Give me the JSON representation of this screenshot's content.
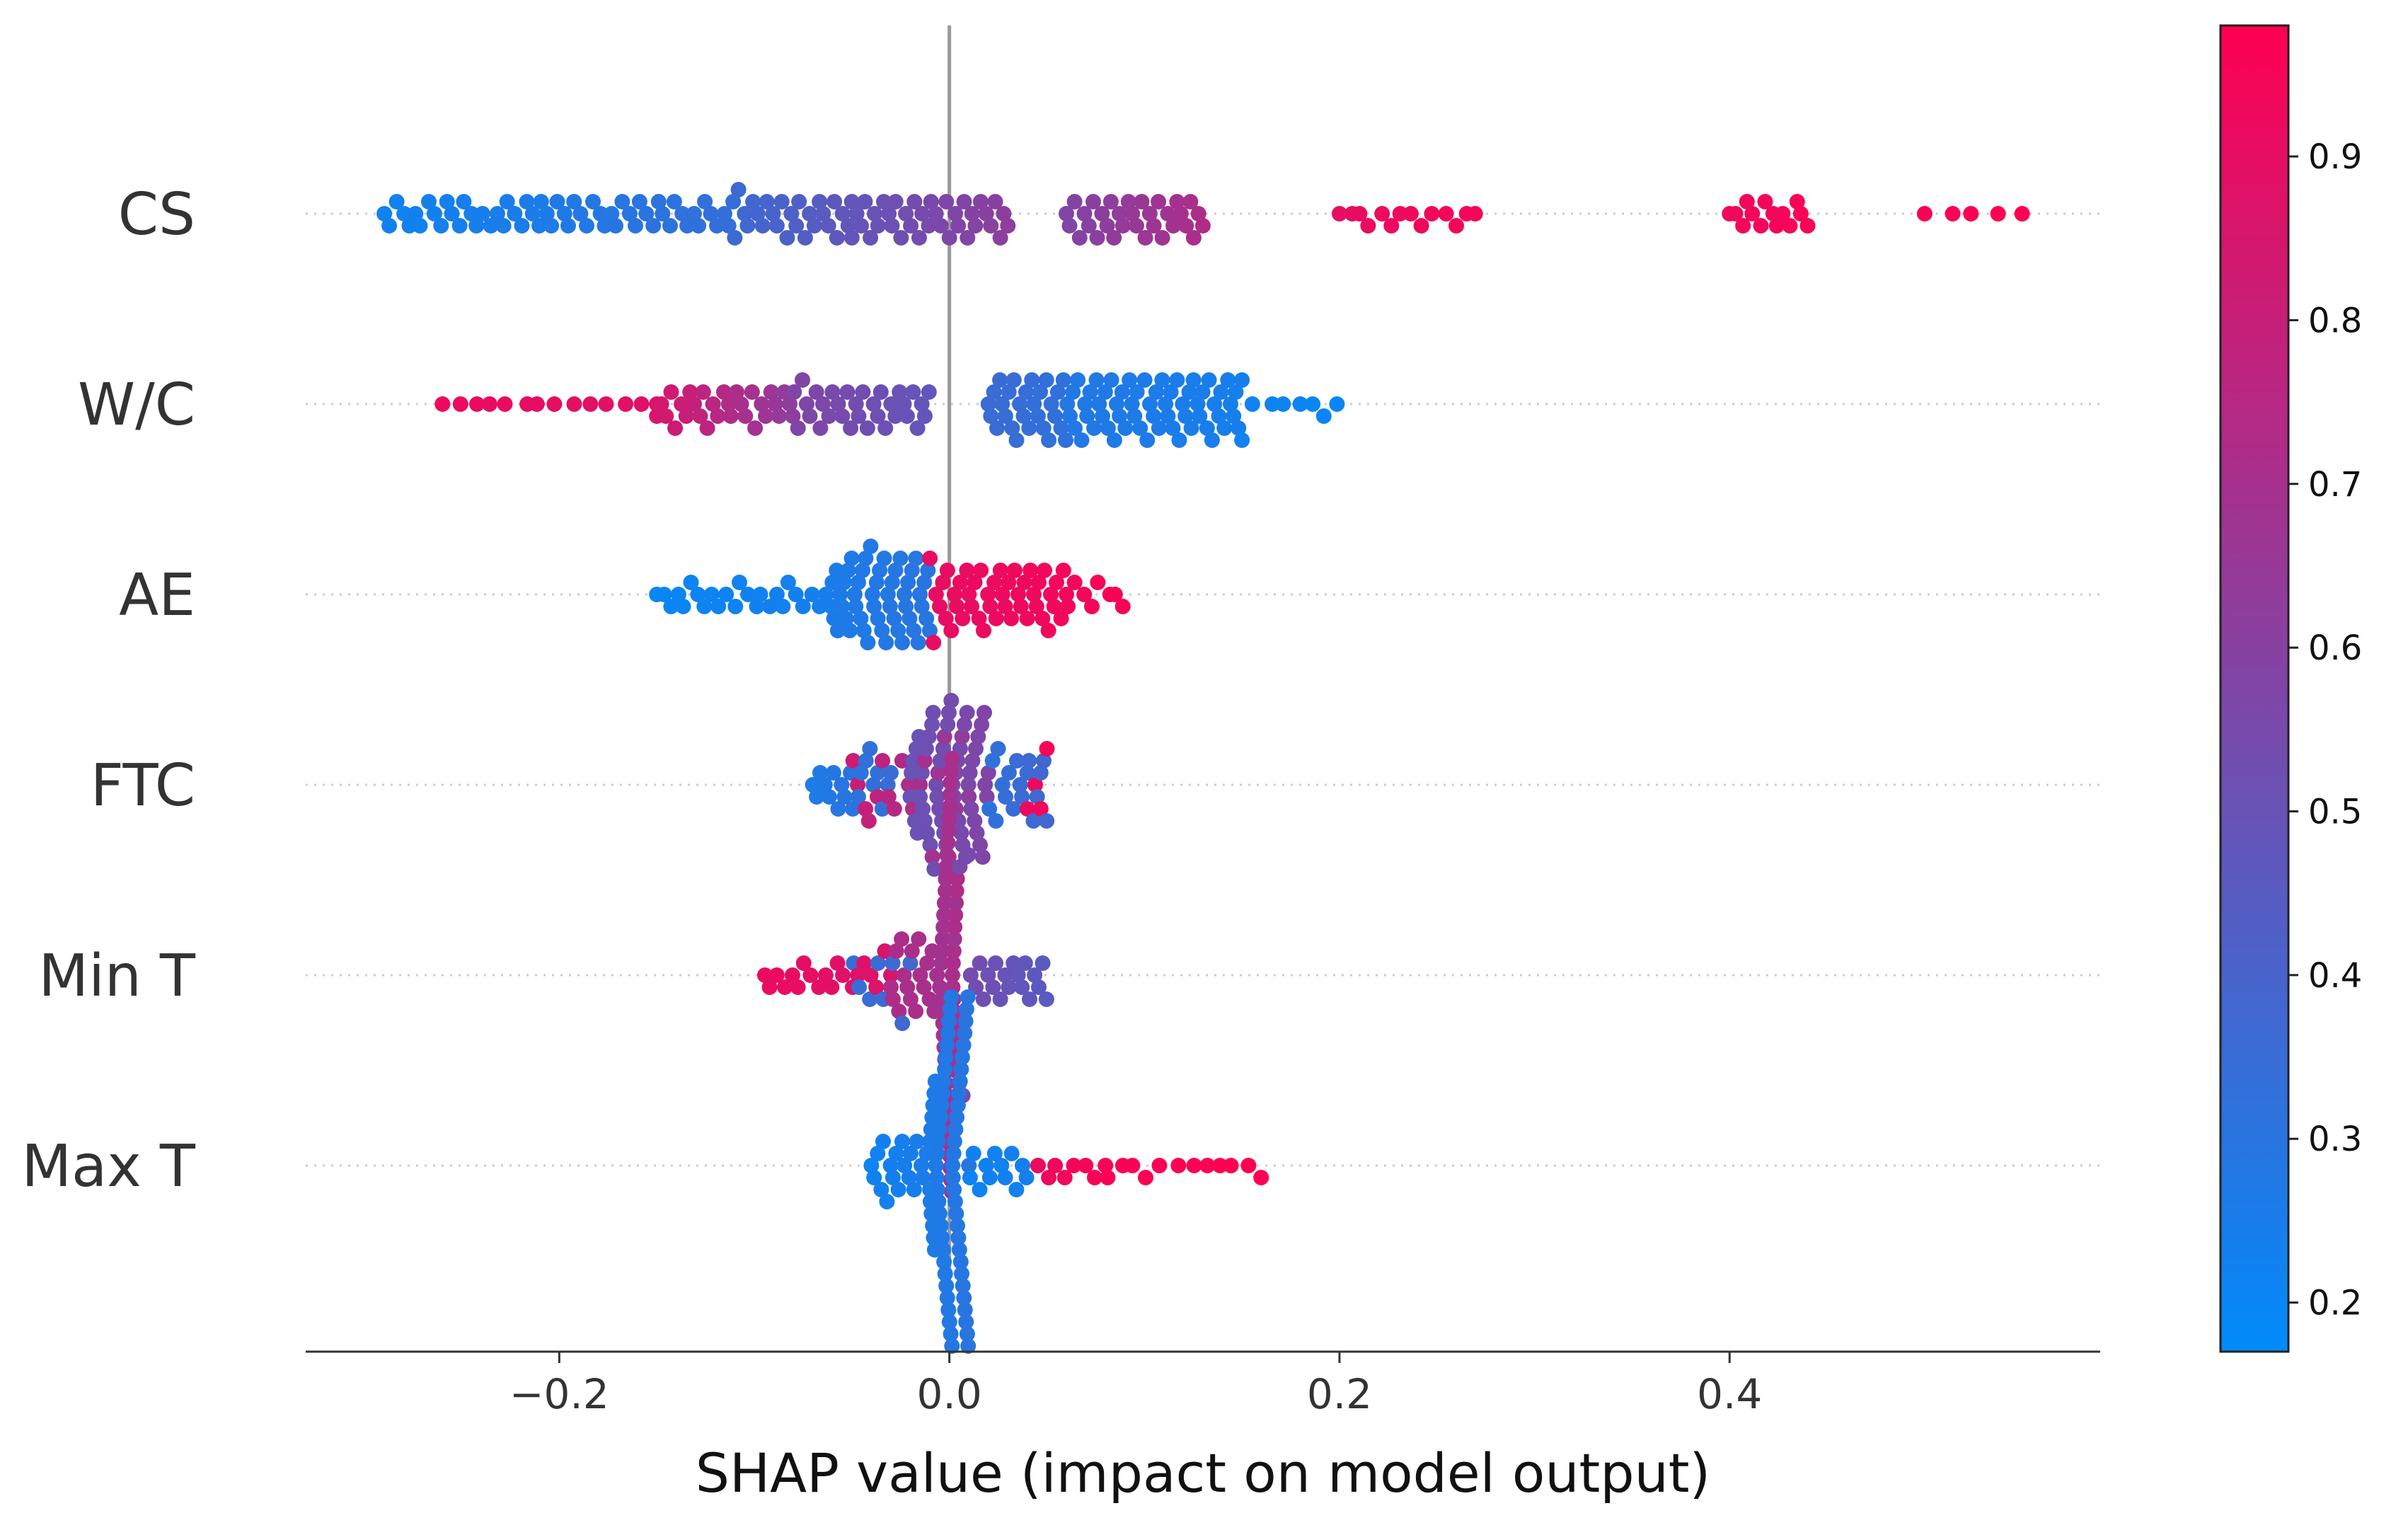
{
  "chart_data": {
    "type": "scatter",
    "subtype": "shap-beeswarm",
    "title": "",
    "xlabel": "SHAP value (impact on model output)",
    "ylabel": "",
    "xlim": [
      -0.33,
      0.59
    ],
    "x_ticks": [
      -0.2,
      0.0,
      0.2,
      0.4
    ],
    "x_tick_labels": [
      "−0.2",
      "0.0",
      "0.2",
      "0.4"
    ],
    "zero_line": 0.0,
    "features": [
      {
        "name": "CS",
        "segments": [
          {
            "x0": -0.29,
            "x1": -0.21,
            "c0": 0.22,
            "c1": 0.26,
            "n": 26
          },
          {
            "x0": -0.21,
            "x1": -0.11,
            "c0": 0.26,
            "c1": 0.34,
            "n": 34
          },
          {
            "x0": -0.11,
            "x1": -0.05,
            "c0": 0.36,
            "c1": 0.48,
            "n": 26
          },
          {
            "x0": -0.05,
            "x1": 0.03,
            "c0": 0.48,
            "c1": 0.62,
            "n": 36
          },
          {
            "x0": 0.06,
            "x1": 0.13,
            "c0": 0.58,
            "c1": 0.72,
            "n": 32
          },
          {
            "x0": 0.2,
            "x1": 0.27,
            "c0": 0.9,
            "c1": 0.95,
            "n": 14
          },
          {
            "x0": 0.4,
            "x1": 0.44,
            "c0": 0.93,
            "c1": 0.96,
            "n": 14
          },
          {
            "x0": 0.5,
            "x1": 0.55,
            "c0": 0.96,
            "c1": 0.98,
            "n": 5
          }
        ]
      },
      {
        "name": "W/C",
        "segments": [
          {
            "x0": -0.26,
            "x1": -0.15,
            "c0": 0.92,
            "c1": 0.88,
            "n": 14
          },
          {
            "x0": -0.15,
            "x1": -0.08,
            "c0": 0.85,
            "c1": 0.62,
            "n": 30
          },
          {
            "x0": -0.08,
            "x1": -0.01,
            "c0": 0.58,
            "c1": 0.48,
            "n": 32
          },
          {
            "x0": 0.02,
            "x1": 0.06,
            "c0": 0.36,
            "c1": 0.32,
            "n": 28
          },
          {
            "x0": 0.06,
            "x1": 0.15,
            "c0": 0.28,
            "c1": 0.24,
            "n": 60
          },
          {
            "x0": 0.15,
            "x1": 0.2,
            "c0": 0.22,
            "c1": 0.2,
            "n": 8
          }
        ]
      },
      {
        "name": "AE",
        "segments": [
          {
            "x0": -0.15,
            "x1": -0.06,
            "c0": 0.2,
            "c1": 0.24,
            "n": 26
          },
          {
            "x0": -0.06,
            "x1": -0.01,
            "c0": 0.26,
            "c1": 0.3,
            "n": 50
          },
          {
            "x0": -0.01,
            "x1": 0.06,
            "c0": 0.9,
            "c1": 0.94,
            "n": 46
          },
          {
            "x0": 0.06,
            "x1": 0.09,
            "c0": 0.94,
            "c1": 0.96,
            "n": 8
          }
        ]
      },
      {
        "name": "FTC",
        "segments": [
          {
            "x0": -0.07,
            "x1": -0.03,
            "c0": 0.26,
            "c1": 0.35,
            "n": 20
          },
          {
            "x0": -0.05,
            "x1": 0.01,
            "c0": 0.82,
            "c1": 0.62,
            "n": 20
          },
          {
            "x0": -0.02,
            "x1": 0.02,
            "c0": 0.5,
            "c1": 0.58,
            "n": 56
          },
          {
            "x0": 0.02,
            "x1": 0.05,
            "c0": 0.32,
            "c1": 0.38,
            "n": 18
          },
          {
            "x0": 0.04,
            "x1": 0.05,
            "c0": 0.92,
            "c1": 0.95,
            "n": 4
          }
        ]
      },
      {
        "name": "Min T",
        "segments": [
          {
            "x0": -0.095,
            "x1": -0.03,
            "c0": 0.92,
            "c1": 0.86,
            "n": 20
          },
          {
            "x0": -0.05,
            "x1": -0.02,
            "c0": 0.34,
            "c1": 0.38,
            "n": 8
          },
          {
            "x0": -0.03,
            "x1": 0.005,
            "c0": 0.72,
            "c1": 0.68,
            "n": 26
          },
          {
            "x0": -0.004,
            "x1": 0.004,
            "c0": 0.68,
            "c1": 0.72,
            "n": 46
          },
          {
            "x0": 0.005,
            "x1": 0.05,
            "c0": 0.55,
            "c1": 0.45,
            "n": 22
          }
        ]
      },
      {
        "name": "Max T",
        "segments": [
          {
            "x0": -0.04,
            "x1": -0.01,
            "c0": 0.22,
            "c1": 0.26,
            "n": 20
          },
          {
            "x0": -0.01,
            "x1": 0.01,
            "c0": 0.26,
            "c1": 0.3,
            "n": 72
          },
          {
            "x0": 0.01,
            "x1": 0.04,
            "c0": 0.22,
            "c1": 0.24,
            "n": 12
          },
          {
            "x0": 0.045,
            "x1": 0.08,
            "c0": 0.92,
            "c1": 0.96,
            "n": 8
          },
          {
            "x0": 0.08,
            "x1": 0.16,
            "c0": 0.96,
            "c1": 0.98,
            "n": 12
          }
        ]
      }
    ],
    "colorbar": {
      "min": 0.17,
      "max": 0.98,
      "ticks": [
        0.2,
        0.3,
        0.4,
        0.5,
        0.6,
        0.7,
        0.8,
        0.9
      ],
      "tick_labels": [
        "0.2",
        "0.3",
        "0.4",
        "0.5",
        "0.6",
        "0.7",
        "0.8",
        "0.9"
      ],
      "colors": [
        "#008bfb",
        "#ff0052"
      ]
    }
  }
}
